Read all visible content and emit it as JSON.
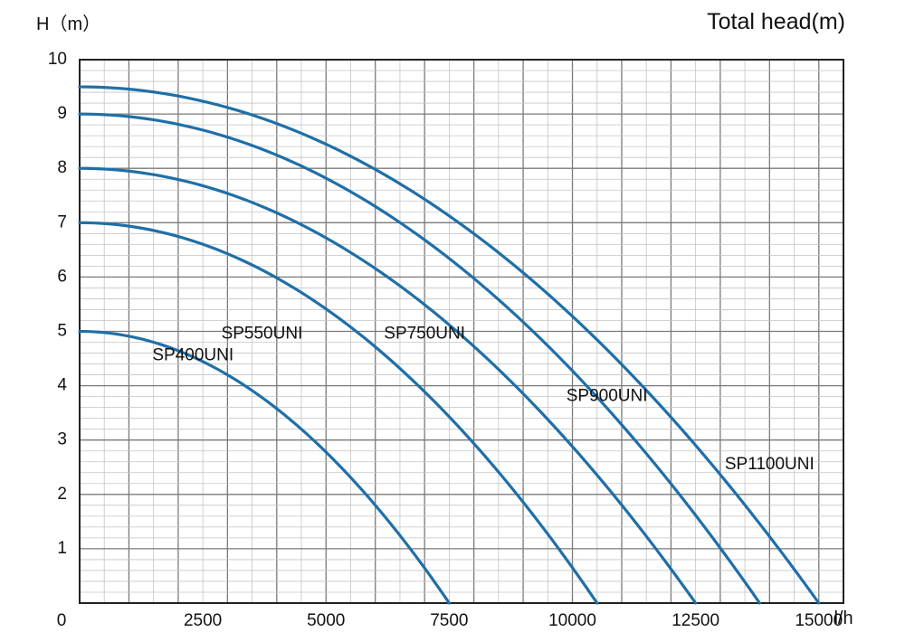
{
  "chart_data": {
    "type": "line",
    "title": "Total head(m)",
    "ylabel": "H（m）",
    "xlabel": "l/h",
    "xlim": [
      0,
      15500
    ],
    "ylim": [
      0,
      10
    ],
    "x_ticks": [
      0,
      2500,
      5000,
      7500,
      10000,
      12500,
      15000
    ],
    "x_tick_labels": [
      "0",
      "2500",
      "5000",
      "7500",
      "10000",
      "12500",
      "15000"
    ],
    "y_ticks": [
      1,
      2,
      3,
      4,
      5,
      6,
      7,
      8,
      9,
      10
    ],
    "y_tick_labels": [
      "1",
      "2",
      "3",
      "4",
      "5",
      "6",
      "7",
      "8",
      "9",
      "10"
    ],
    "grid": true,
    "line_color": "#1f6fa8",
    "series": [
      {
        "name": "SP400UNI",
        "shutoff_head": 5.0,
        "max_flow": 7500
      },
      {
        "name": "SP550UNI",
        "shutoff_head": 7.0,
        "max_flow": 10500
      },
      {
        "name": "SP750UNI",
        "shutoff_head": 8.0,
        "max_flow": 12500
      },
      {
        "name": "SP900UNI",
        "shutoff_head": 9.0,
        "max_flow": 13800
      },
      {
        "name": "SP1100UNI",
        "shutoff_head": 9.5,
        "max_flow": 15000
      }
    ],
    "series_label_anchors": [
      {
        "name": "SP400UNI",
        "x": 2300,
        "y": 4.55
      },
      {
        "name": "SP550UNI",
        "x": 3700,
        "y": 4.95
      },
      {
        "name": "SP750UNI",
        "x": 7000,
        "y": 4.95
      },
      {
        "name": "SP900UNI",
        "x": 10700,
        "y": 3.8
      },
      {
        "name": "SP1100UNI",
        "x": 14000,
        "y": 2.55
      }
    ]
  }
}
